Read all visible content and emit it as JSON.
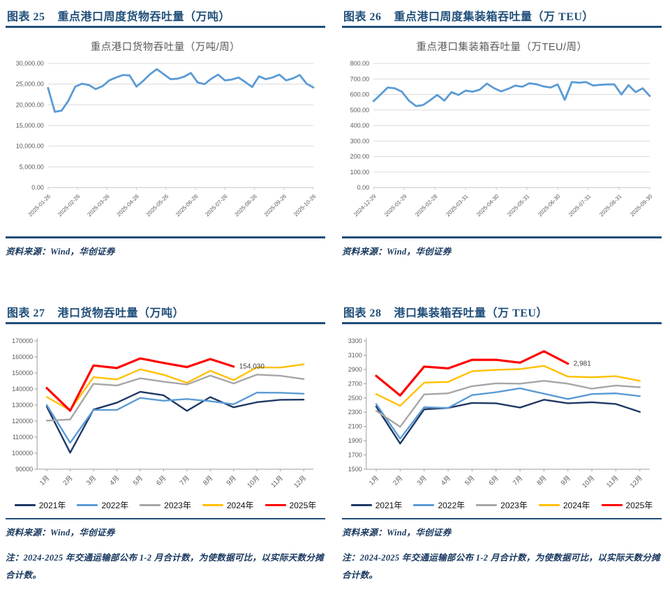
{
  "colors": {
    "header_navy": "#1F4E79",
    "source_navy": "#17375E",
    "weekly_line_blue": "#5B9BD5",
    "grid_gray": "#D9D9D9",
    "axis_gray": "#9C9C9C",
    "tick_label_gray": "#595959",
    "data_label_dark": "#3F3F3F",
    "series_2021": "#1F3864",
    "series_2022": "#5B9BD5",
    "series_2023": "#A6A6A6",
    "series_2024": "#FFC000",
    "series_2025": "#FF0000"
  },
  "figures": [
    {
      "fig_label": "图表 25",
      "fig_title": "重点港口周度货物吞吐量（万吨）",
      "source": "资料来源：Wind，华创证券"
    },
    {
      "fig_label": "图表 26",
      "fig_title": "重点港口周度集装箱吞吐量（万 TEU）",
      "source": "资料来源：Wind，华创证券"
    },
    {
      "fig_label": "图表 27",
      "fig_title": "港口货物吞吐量（万吨）",
      "source": "资料来源：Wind，华创证券",
      "note": "注：2024-2025 年交通运输部公布 1-2 月合计数，为使数据可比，以实际天数分摊合计数。"
    },
    {
      "fig_label": "图表 28",
      "fig_title": "港口集装箱吞吐量（万 TEU）",
      "source": "资料来源：Wind，华创证券",
      "note": "注：2024-2025 年交通运输部公布 1-2 月合计数，为使数据可比，以实际天数分摊合计数。"
    }
  ],
  "chart_data": [
    {
      "type": "line",
      "title": "重点港口货物吞吐量（万吨/周）",
      "ylim": [
        0,
        30000
      ],
      "ytick_labels": [
        "0.00",
        "5,000.00",
        "10,000.00",
        "15,000.00",
        "20,000.00",
        "25,000.00",
        "30,000.00"
      ],
      "x_tick_labels": [
        "2025-01-26",
        "2025-02-26",
        "2025-03-26",
        "2025-04-26",
        "2025-05-26",
        "2025-06-26",
        "2025-07-26",
        "2025-08-26",
        "2025-09-26",
        "2025-10-26"
      ],
      "x_label_rotation": -45,
      "grid": true,
      "axis_line": false,
      "legend": false,
      "series": [
        {
          "name": "重点港口货物吞吐量",
          "color": "#5B9BD5",
          "values": [
            24100,
            18300,
            18600,
            21000,
            24400,
            25100,
            24800,
            23800,
            24500,
            25900,
            26600,
            27200,
            27100,
            24400,
            25800,
            27400,
            28600,
            27400,
            26200,
            26300,
            26800,
            27700,
            25400,
            25000,
            26300,
            27300,
            25900,
            26100,
            26600,
            25500,
            24300,
            26900,
            26200,
            26600,
            27300,
            25900,
            26400,
            27200,
            25100,
            24200
          ]
        }
      ]
    },
    {
      "type": "line",
      "title": "重点港口集装箱吞吐量（万TEU/周）",
      "ylim": [
        0,
        800
      ],
      "ytick_labels": [
        "0.00",
        "100.00",
        "200.00",
        "300.00",
        "400.00",
        "500.00",
        "600.00",
        "700.00",
        "800.00"
      ],
      "x_tick_labels": [
        "2024-12-29",
        "2025-01-29",
        "2025-02-28",
        "2025-03-31",
        "2025-04-30",
        "2025-05-31",
        "2025-06-30",
        "2025-07-31",
        "2025-08-31",
        "2025-09-30"
      ],
      "x_label_rotation": -45,
      "grid": true,
      "axis_line": false,
      "legend": false,
      "series": [
        {
          "name": "重点港口集装箱吞吐量",
          "color": "#5B9BD5",
          "values": [
            557,
            600,
            645,
            640,
            618,
            560,
            525,
            532,
            563,
            597,
            560,
            615,
            597,
            625,
            618,
            631,
            670,
            641,
            620,
            636,
            657,
            650,
            672,
            666,
            652,
            645,
            665,
            565,
            680,
            676,
            680,
            658,
            662,
            665,
            665,
            600,
            660,
            615,
            640,
            590
          ]
        }
      ]
    },
    {
      "type": "line",
      "title": "",
      "ylim": [
        90000,
        170000
      ],
      "ytick_labels": [
        "90000",
        "100000",
        "110000",
        "120000",
        "130000",
        "140000",
        "150000",
        "160000",
        "170000"
      ],
      "categories": [
        "1月",
        "2月",
        "3月",
        "4月",
        "5月",
        "6月",
        "7月",
        "8月",
        "9月",
        "10月",
        "11月",
        "12月"
      ],
      "x_label_rotation": -45,
      "grid": false,
      "axis_line": true,
      "legend": true,
      "series": [
        {
          "name": "2021年",
          "color": "#1F3864",
          "values": [
            129000,
            100300,
            127200,
            131500,
            138300,
            136100,
            126400,
            135000,
            128600,
            131800,
            133300,
            133400
          ]
        },
        {
          "name": "2022年",
          "color": "#5B9BD5",
          "values": [
            130000,
            106500,
            127000,
            127000,
            134500,
            132700,
            133800,
            132400,
            130500,
            137800,
            137700,
            137100
          ]
        },
        {
          "name": "2023年",
          "color": "#A6A6A6",
          "values": [
            120300,
            121000,
            143300,
            142200,
            146700,
            144600,
            142800,
            148400,
            143500,
            149000,
            148300,
            146200
          ]
        },
        {
          "name": "2024年",
          "color": "#FFC000",
          "values": [
            135000,
            126800,
            147400,
            146000,
            152300,
            148900,
            143900,
            151400,
            145600,
            153500,
            153400,
            155400
          ]
        },
        {
          "name": "2025年",
          "color": "#FF0000",
          "values": [
            140600,
            126500,
            154700,
            153100,
            159100,
            156300,
            153700,
            158700,
            154030,
            null,
            null,
            null
          ],
          "end_label": "154,030"
        }
      ]
    },
    {
      "type": "line",
      "title": "",
      "ylim": [
        1500,
        3300
      ],
      "ytick_labels": [
        "1500",
        "1700",
        "1900",
        "2100",
        "2300",
        "2500",
        "2700",
        "2900",
        "3100",
        "3300"
      ],
      "categories": [
        "1月",
        "2月",
        "3月",
        "4月",
        "5月",
        "6月",
        "7月",
        "8月",
        "9月",
        "10月",
        "11月",
        "12月"
      ],
      "x_label_rotation": -45,
      "grid": false,
      "axis_line": true,
      "legend": true,
      "series": [
        {
          "name": "2021年",
          "color": "#1F3864",
          "values": [
            2380,
            1860,
            2340,
            2360,
            2430,
            2425,
            2365,
            2475,
            2425,
            2440,
            2415,
            2305
          ]
        },
        {
          "name": "2022年",
          "color": "#5B9BD5",
          "values": [
            2415,
            1930,
            2370,
            2360,
            2540,
            2580,
            2635,
            2560,
            2485,
            2555,
            2565,
            2525
          ]
        },
        {
          "name": "2023年",
          "color": "#A6A6A6",
          "values": [
            2320,
            2095,
            2550,
            2565,
            2665,
            2705,
            2700,
            2740,
            2700,
            2630,
            2675,
            2650
          ]
        },
        {
          "name": "2024年",
          "color": "#FFC000",
          "values": [
            2555,
            2390,
            2715,
            2725,
            2875,
            2895,
            2905,
            2950,
            2800,
            2790,
            2805,
            2740
          ]
        },
        {
          "name": "2025年",
          "color": "#FF0000",
          "values": [
            2810,
            2535,
            2940,
            2915,
            3035,
            3035,
            2995,
            3155,
            2981,
            null,
            null,
            null
          ],
          "end_label": "2,981"
        }
      ]
    }
  ]
}
